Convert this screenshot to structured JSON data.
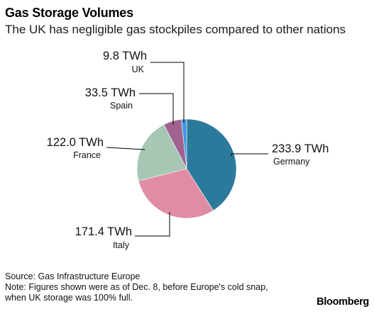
{
  "header": {
    "title": "Gas Storage Volumes",
    "subtitle": "The UK has negligible gas stockpiles compared to other nations"
  },
  "chart_data": {
    "type": "pie",
    "unit": "TWh",
    "slices": [
      {
        "name": "Germany",
        "value": 233.9,
        "value_label": "233.9 TWh",
        "color": "#2b7a9b"
      },
      {
        "name": "Italy",
        "value": 171.4,
        "value_label": "171.4 TWh",
        "color": "#e08ca2"
      },
      {
        "name": "France",
        "value": 122.0,
        "value_label": "122.0 TWh",
        "color": "#a5c7b4"
      },
      {
        "name": "Spain",
        "value": 33.5,
        "value_label": "33.5 TWh",
        "color": "#a0628f"
      },
      {
        "name": "UK",
        "value": 9.8,
        "value_label": "9.8 TWh",
        "color": "#3f97e0"
      }
    ]
  },
  "footer": {
    "source": "Source: Gas Infrastructure Europe",
    "note_line1": "Note: Figures shown were as of Dec. 8, before Europe's cold snap,",
    "note_line2": "when UK storage was 100% full.",
    "brand": "Bloomberg"
  }
}
